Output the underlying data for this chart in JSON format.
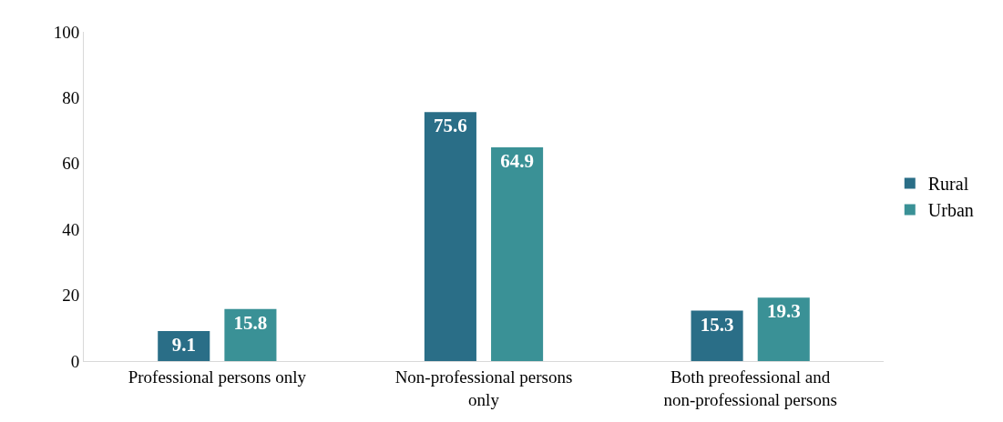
{
  "chart_data": {
    "type": "bar",
    "categories": [
      "Professional persons only",
      "Non-professional persons only",
      "Both preofessional and non-professional persons"
    ],
    "series": [
      {
        "name": "Rural",
        "color": "#2a6e87",
        "values": [
          9.1,
          75.6,
          15.3
        ]
      },
      {
        "name": "Urban",
        "color": "#3a9196",
        "values": [
          15.8,
          64.9,
          19.3
        ]
      }
    ],
    "ylim": [
      0,
      100
    ],
    "yticks": [
      0,
      20,
      40,
      60,
      80,
      100
    ],
    "grid": false,
    "legend": "right",
    "data_labels": true
  }
}
